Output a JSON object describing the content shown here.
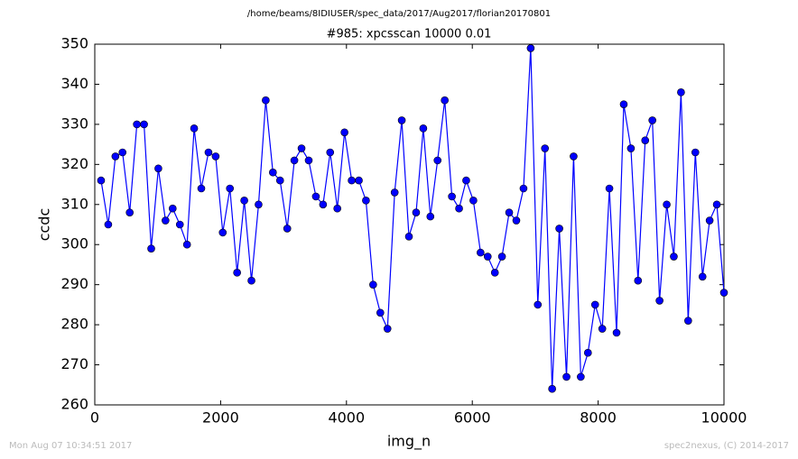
{
  "chart_data": {
    "type": "line",
    "suptitle": "/home/beams/8IDIUSER/spec_data/2017/Aug2017/florian20170801",
    "title": "#985: xpcsscan 10000 0.01",
    "xlabel": "img_n",
    "ylabel": "ccdc",
    "footer_left": "Mon Aug 07 10:34:51 2017",
    "footer_right": "spec2nexus, (C) 2014-2017",
    "x": [
      100,
      214,
      328,
      441,
      555,
      669,
      783,
      897,
      1010,
      1124,
      1238,
      1352,
      1466,
      1579,
      1693,
      1807,
      1921,
      2034,
      2148,
      2262,
      2376,
      2490,
      2603,
      2717,
      2831,
      2945,
      3059,
      3172,
      3286,
      3400,
      3514,
      3628,
      3741,
      3855,
      3969,
      4083,
      4197,
      4310,
      4424,
      4538,
      4652,
      4766,
      4879,
      4993,
      5107,
      5221,
      5334,
      5448,
      5562,
      5676,
      5790,
      5903,
      6017,
      6131,
      6245,
      6359,
      6472,
      6586,
      6700,
      6814,
      6928,
      7041,
      7155,
      7269,
      7383,
      7497,
      7610,
      7724,
      7838,
      7952,
      8066,
      8179,
      8293,
      8407,
      8521,
      8634,
      8748,
      8862,
      8976,
      9090,
      9203,
      9317,
      9431,
      9545,
      9659,
      9772,
      9886,
      10000
    ],
    "series": [
      {
        "name": "ccdc",
        "color": "#0000ff",
        "values": [
          316,
          305,
          322,
          323,
          308,
          330,
          330,
          299,
          319,
          306,
          309,
          305,
          300,
          329,
          314,
          323,
          322,
          303,
          314,
          293,
          311,
          291,
          310,
          336,
          318,
          316,
          304,
          321,
          324,
          321,
          312,
          310,
          323,
          309,
          328,
          316,
          316,
          311,
          290,
          283,
          279,
          313,
          331,
          302,
          308,
          329,
          307,
          321,
          336,
          312,
          309,
          316,
          311,
          298,
          297,
          293,
          297,
          308,
          306,
          314,
          349,
          285,
          324,
          264,
          304,
          267,
          322,
          267,
          273,
          285,
          279,
          314,
          278,
          335,
          324,
          291,
          326,
          331,
          286,
          310,
          297,
          338,
          281,
          323,
          292,
          306,
          310,
          288
        ]
      }
    ],
    "xlim": [
      0,
      10000
    ],
    "ylim": [
      260,
      350
    ],
    "xticks": [
      0,
      2000,
      4000,
      6000,
      8000,
      10000
    ],
    "yticks": [
      260,
      270,
      280,
      290,
      300,
      310,
      320,
      330,
      340,
      350
    ]
  }
}
